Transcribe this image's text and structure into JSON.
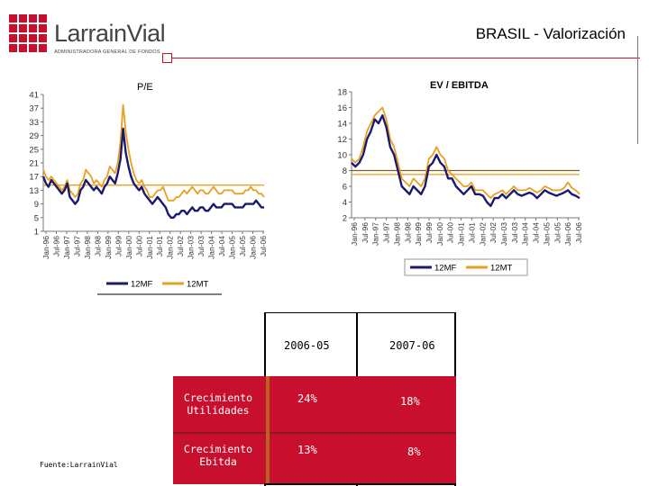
{
  "header": {
    "title": "BRASIL - Valorización",
    "logo_name": "LarrainVial",
    "logo_sub": "ADMINISTRADORA GENERAL DE FONDOS"
  },
  "colors": {
    "accent": "#c8102e",
    "series_mf": "#1a1a6e",
    "series_mt": "#e8a020",
    "ref_line": "#8a5a1a"
  },
  "chart_data": [
    {
      "type": "line",
      "title": "P/E",
      "yticks": [
        1,
        5,
        9,
        13,
        17,
        21,
        25,
        29,
        33,
        37,
        41
      ],
      "ylim": [
        1,
        41
      ],
      "xticks": [
        "Jan-96",
        "Jul-96",
        "Jan-97",
        "Jul-97",
        "Jan-98",
        "Jul-98",
        "Jan-99",
        "Jul-99",
        "Jan-00",
        "Jul-00",
        "Jan-01",
        "Jul-01",
        "Jan-02",
        "Jul-02",
        "Jan-03",
        "Jul-03",
        "Jan-04",
        "Jul-04",
        "Jan-05",
        "Jul-05",
        "Jan-06",
        "Jul-06"
      ],
      "reference_lines": [
        {
          "value": 14.5
        }
      ],
      "series": [
        {
          "name": "12MF",
          "values": [
            17,
            15,
            14,
            16,
            15,
            14,
            13,
            12,
            13,
            15,
            11,
            10,
            9,
            10,
            13,
            14,
            16,
            15,
            14,
            13,
            14,
            13,
            12,
            14,
            15,
            17,
            16,
            15,
            18,
            22,
            31,
            24,
            20,
            17,
            15,
            14,
            13,
            14,
            12,
            11,
            10,
            9,
            10,
            11,
            10,
            9,
            8,
            6,
            5,
            5,
            6,
            6,
            7,
            7,
            6,
            7,
            8,
            7,
            7,
            8,
            8,
            7,
            7,
            8,
            9,
            8,
            8,
            8,
            9,
            9,
            9,
            9,
            8,
            8,
            8,
            8,
            9,
            9,
            9,
            9,
            10,
            9,
            8,
            8
          ]
        },
        {
          "name": "12MT",
          "values": [
            19,
            17,
            16,
            17,
            16,
            15,
            14,
            13,
            14,
            16,
            13,
            12,
            11,
            12,
            15,
            16,
            19,
            18,
            17,
            15,
            16,
            15,
            14,
            16,
            17,
            20,
            19,
            18,
            21,
            27,
            38,
            30,
            25,
            21,
            18,
            16,
            15,
            16,
            14,
            13,
            11,
            11,
            12,
            13,
            13,
            14,
            12,
            10,
            10,
            10,
            11,
            11,
            12,
            13,
            12,
            13,
            14,
            13,
            12,
            13,
            13,
            12,
            12,
            13,
            14,
            13,
            12,
            12,
            13,
            13,
            13,
            13,
            12,
            12,
            12,
            12,
            13,
            13,
            14,
            13,
            13,
            12,
            12,
            11
          ]
        }
      ],
      "legend": [
        "12MF",
        "12MT"
      ]
    },
    {
      "type": "line",
      "title": "EV / EBITDA",
      "yticks": [
        2,
        4,
        6,
        8,
        10,
        12,
        14,
        16,
        18
      ],
      "ylim": [
        2,
        18
      ],
      "xticks": [
        "Jan-96",
        "Jul-96",
        "Jan-97",
        "Jul-97",
        "Jan-98",
        "Jul-98",
        "Jan-99",
        "Jul-99",
        "Jan-00",
        "Jul-00",
        "Jan-01",
        "Jul-01",
        "Jan-02",
        "Jul-02",
        "Jan-03",
        "Jul-03",
        "Jan-04",
        "Jul-04",
        "Jan-05",
        "Jul-05",
        "Jan-06",
        "Jul-06"
      ],
      "reference_lines": [
        {
          "value": 7.5
        },
        {
          "value": 8
        }
      ],
      "series": [
        {
          "name": "12MF",
          "values": [
            9,
            8.5,
            9,
            10,
            12,
            13,
            14.5,
            14,
            15,
            13.5,
            11,
            10,
            8,
            6,
            5.5,
            5,
            6,
            5.5,
            5,
            6,
            8.5,
            9,
            10,
            9,
            8.5,
            7,
            7,
            6,
            5.5,
            5,
            5.5,
            6,
            5,
            5,
            4.8,
            4,
            3.5,
            4.5,
            4.5,
            5,
            4.5,
            5,
            5.5,
            5,
            4.8,
            5,
            5.2,
            5,
            4.5,
            5,
            5.5,
            5.2,
            5,
            4.8,
            5,
            5.2,
            5.5,
            5,
            4.8,
            4.5
          ]
        },
        {
          "name": "12MT",
          "values": [
            9.5,
            9,
            9.5,
            11,
            13,
            14,
            15,
            15.5,
            16,
            14.5,
            12,
            11,
            9,
            7,
            6.5,
            6,
            7,
            6.5,
            6,
            7,
            9.5,
            10,
            11,
            10,
            9.5,
            8,
            7.5,
            7,
            6.5,
            6,
            6,
            6.5,
            5.5,
            5.5,
            5.5,
            5,
            4.5,
            5,
            5.2,
            5.5,
            5,
            5.5,
            6,
            5.5,
            5.5,
            5.5,
            5.8,
            5.5,
            5.2,
            5.5,
            6,
            5.8,
            5.5,
            5.5,
            5.5,
            5.8,
            6.5,
            5.8,
            5.5,
            5
          ]
        }
      ],
      "legend": [
        "12MF",
        "12MT"
      ]
    }
  ],
  "table": {
    "columns": [
      "2006-05",
      "2007-06"
    ],
    "rows": [
      {
        "label_line1": "Crecimiento",
        "label_line2": "Utilidades",
        "values": [
          "24%",
          "18%"
        ]
      },
      {
        "label_line1": "Crecimiento",
        "label_line2": "Ebitda",
        "values": [
          "13%",
          "8%"
        ]
      }
    ]
  },
  "footer": {
    "source": "Fuente:LarrainVial"
  }
}
